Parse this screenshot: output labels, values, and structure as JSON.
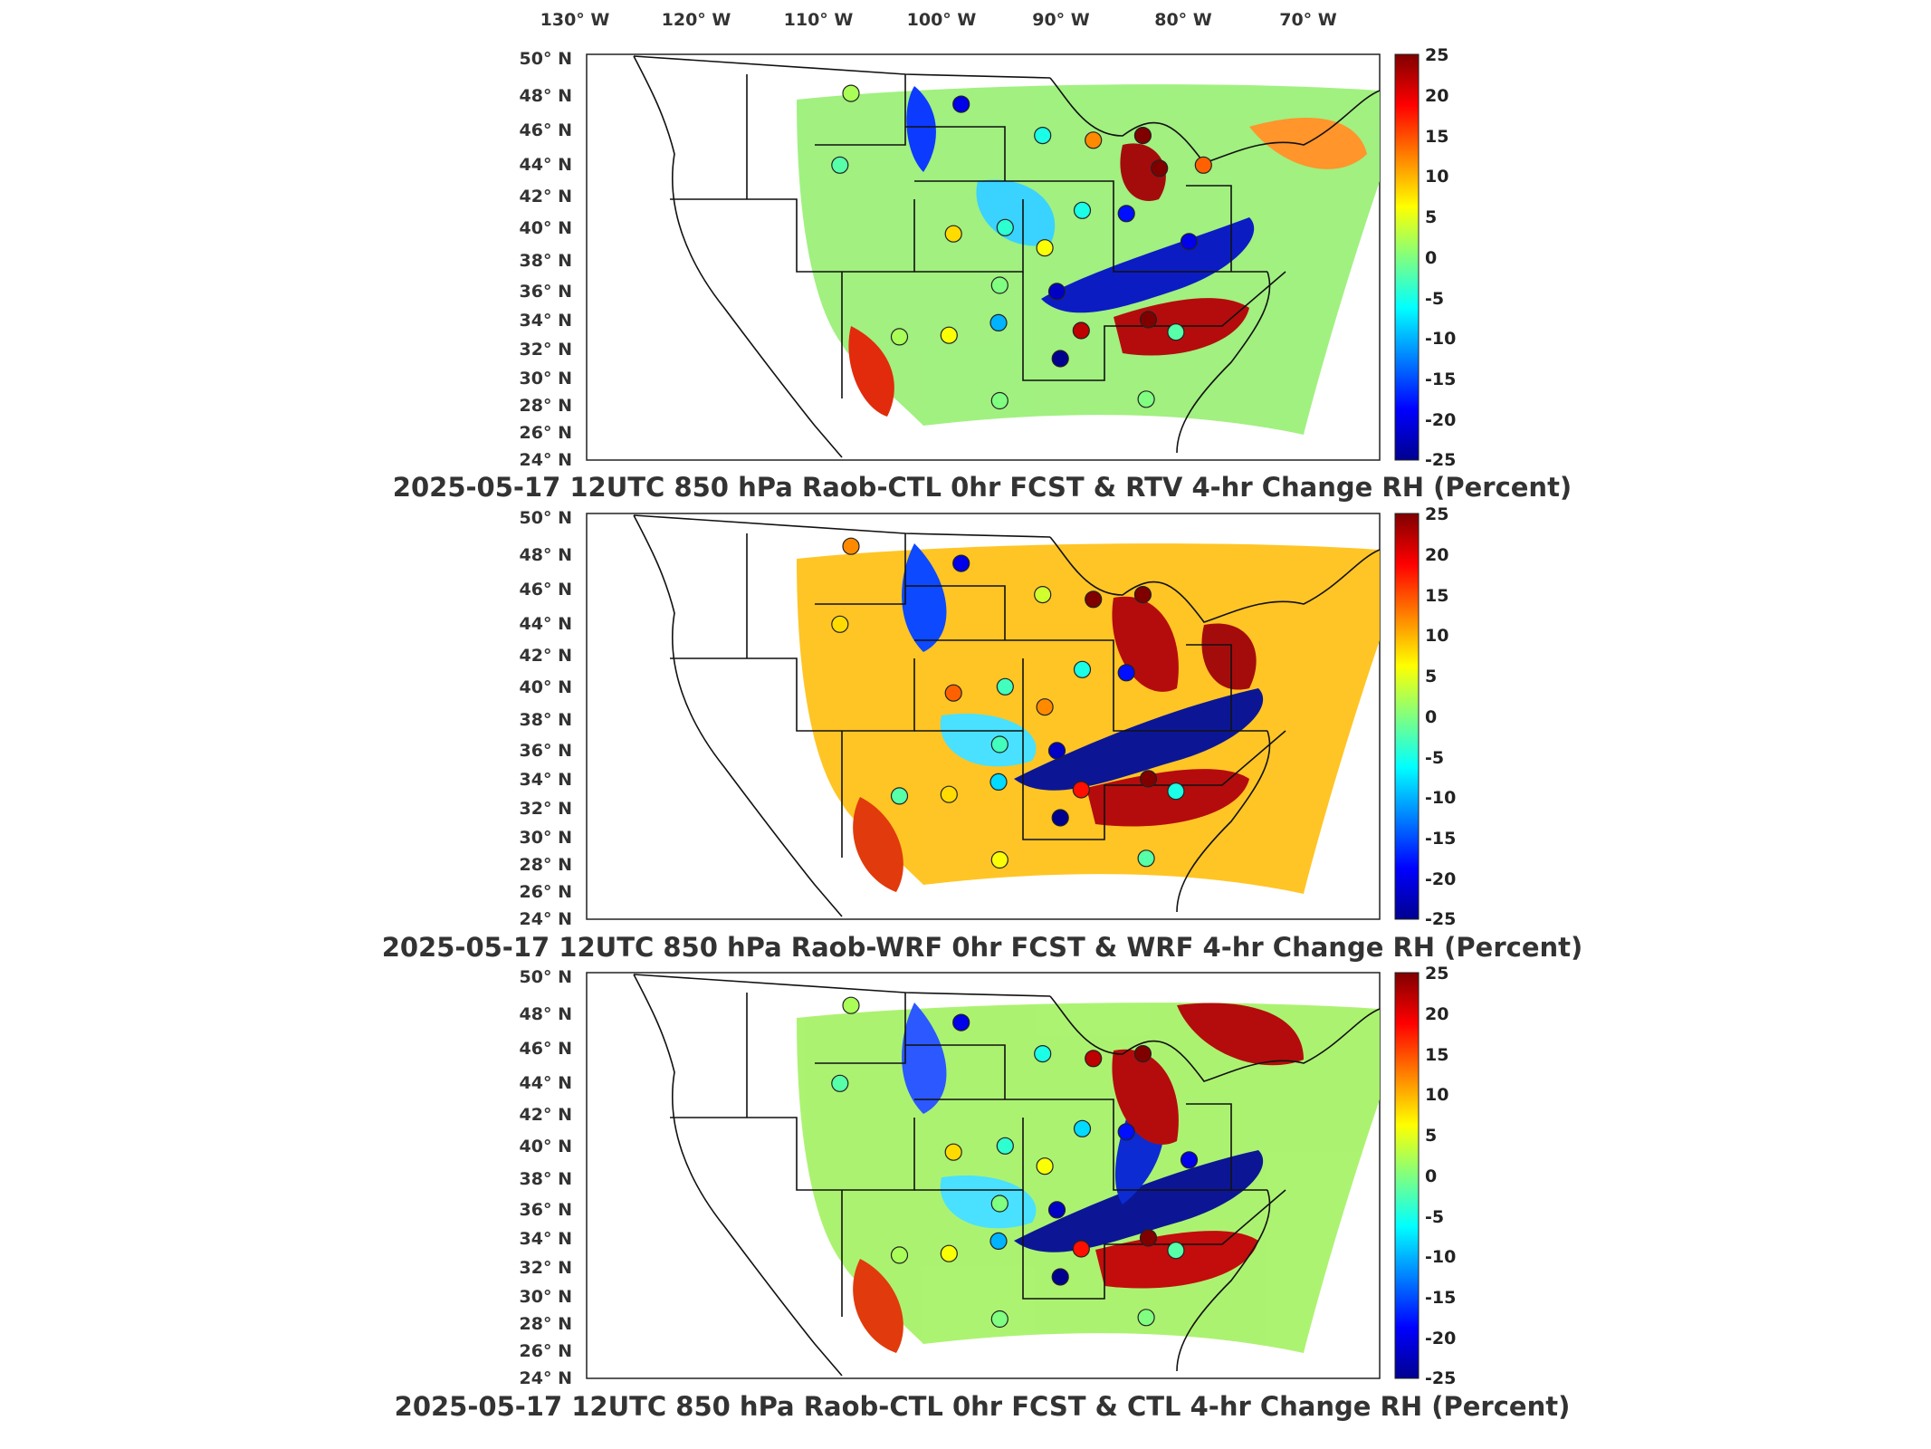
{
  "lon_labels": [
    "130° W",
    "120° W",
    "110° W",
    "100° W",
    "90° W",
    "80° W",
    "70° W"
  ],
  "lat_labels": [
    "50° N",
    "48° N",
    "46° N",
    "44° N",
    "42° N",
    "40° N",
    "38° N",
    "36° N",
    "34° N",
    "32° N",
    "30° N",
    "28° N",
    "26° N",
    "24° N"
  ],
  "colorbar": {
    "min": -25,
    "max": 25,
    "tick_labels": [
      "25",
      "20",
      "15",
      "10",
      "5",
      "0",
      "-5",
      "-10",
      "-15",
      "-20",
      "-25"
    ],
    "colormap": "jet",
    "colors": [
      "#00008f",
      "#0000ff",
      "#0080ff",
      "#00ffff",
      "#80ff80",
      "#ffff00",
      "#ff8000",
      "#ff0000",
      "#800000"
    ]
  },
  "panels": [
    {
      "title": "2025-05-17 12UTC 850 hPa Raob-CTL 0hr FCST & RTV 4-hr Change RH (Percent)",
      "raob_points": [
        {
          "lon": -111.0,
          "lat": 47.5,
          "value": 2
        },
        {
          "lon": -101.0,
          "lat": 46.8,
          "value": -20
        },
        {
          "lon": -112.0,
          "lat": 42.9,
          "value": -2
        },
        {
          "lon": -93.6,
          "lat": 44.8,
          "value": -5
        },
        {
          "lon": -89.0,
          "lat": 44.5,
          "value": 12
        },
        {
          "lon": -84.5,
          "lat": 44.8,
          "value": 25
        },
        {
          "lon": -83.0,
          "lat": 42.7,
          "value": 25
        },
        {
          "lon": -79.0,
          "lat": 42.9,
          "value": 14
        },
        {
          "lon": -97.0,
          "lat": 38.9,
          "value": -4
        },
        {
          "lon": -101.7,
          "lat": 38.5,
          "value": 8
        },
        {
          "lon": -93.4,
          "lat": 37.6,
          "value": 6
        },
        {
          "lon": -90.0,
          "lat": 40.0,
          "value": -5
        },
        {
          "lon": -86.0,
          "lat": 39.8,
          "value": -18
        },
        {
          "lon": -80.3,
          "lat": 38.0,
          "value": -20
        },
        {
          "lon": -97.5,
          "lat": 35.2,
          "value": 0
        },
        {
          "lon": -92.3,
          "lat": 34.8,
          "value": -22
        },
        {
          "lon": -97.6,
          "lat": 32.8,
          "value": -10
        },
        {
          "lon": -90.1,
          "lat": 32.3,
          "value": 22
        },
        {
          "lon": -84.0,
          "lat": 33.0,
          "value": 25
        },
        {
          "lon": -81.5,
          "lat": 32.2,
          "value": -2
        },
        {
          "lon": -106.6,
          "lat": 31.9,
          "value": 2
        },
        {
          "lon": -102.1,
          "lat": 32.0,
          "value": 6
        },
        {
          "lon": -92.0,
          "lat": 30.5,
          "value": -25
        },
        {
          "lon": -97.5,
          "lat": 27.8,
          "value": 0
        },
        {
          "lon": -84.2,
          "lat": 27.9,
          "value": 0
        }
      ]
    },
    {
      "title": "2025-05-17 12UTC 850 hPa Raob-WRF 0hr FCST & WRF 4-hr Change RH (Percent)",
      "raob_points": [
        {
          "lon": -111.0,
          "lat": 47.9,
          "value": 12
        },
        {
          "lon": -101.0,
          "lat": 46.8,
          "value": -20
        },
        {
          "lon": -112.0,
          "lat": 42.9,
          "value": 8
        },
        {
          "lon": -93.6,
          "lat": 44.8,
          "value": 4
        },
        {
          "lon": -89.0,
          "lat": 44.5,
          "value": 25
        },
        {
          "lon": -84.5,
          "lat": 44.8,
          "value": 25
        },
        {
          "lon": -97.0,
          "lat": 38.9,
          "value": -3
        },
        {
          "lon": -101.7,
          "lat": 38.5,
          "value": 14
        },
        {
          "lon": -93.4,
          "lat": 37.6,
          "value": 12
        },
        {
          "lon": -90.0,
          "lat": 40.0,
          "value": -5
        },
        {
          "lon": -86.0,
          "lat": 39.8,
          "value": -18
        },
        {
          "lon": -97.5,
          "lat": 35.2,
          "value": -3
        },
        {
          "lon": -92.3,
          "lat": 34.8,
          "value": -22
        },
        {
          "lon": -97.6,
          "lat": 32.8,
          "value": -8
        },
        {
          "lon": -90.1,
          "lat": 32.3,
          "value": 18
        },
        {
          "lon": -84.0,
          "lat": 33.0,
          "value": 25
        },
        {
          "lon": -81.5,
          "lat": 32.2,
          "value": -5
        },
        {
          "lon": -106.6,
          "lat": 31.9,
          "value": -2
        },
        {
          "lon": -102.1,
          "lat": 32.0,
          "value": 8
        },
        {
          "lon": -92.0,
          "lat": 30.5,
          "value": -25
        },
        {
          "lon": -97.5,
          "lat": 27.8,
          "value": 6
        },
        {
          "lon": -84.2,
          "lat": 27.9,
          "value": -2
        }
      ]
    },
    {
      "title": "2025-05-17 12UTC 850 hPa Raob-CTL 0hr FCST & CTL 4-hr Change RH (Percent)",
      "raob_points": [
        {
          "lon": -111.0,
          "lat": 47.9,
          "value": 2
        },
        {
          "lon": -101.0,
          "lat": 46.8,
          "value": -20
        },
        {
          "lon": -112.0,
          "lat": 42.9,
          "value": -2
        },
        {
          "lon": -93.6,
          "lat": 44.8,
          "value": -5
        },
        {
          "lon": -89.0,
          "lat": 44.5,
          "value": 22
        },
        {
          "lon": -84.5,
          "lat": 44.8,
          "value": 25
        },
        {
          "lon": -97.0,
          "lat": 38.9,
          "value": -4
        },
        {
          "lon": -101.7,
          "lat": 38.5,
          "value": 8
        },
        {
          "lon": -93.4,
          "lat": 37.6,
          "value": 6
        },
        {
          "lon": -90.0,
          "lat": 40.0,
          "value": -8
        },
        {
          "lon": -86.0,
          "lat": 39.8,
          "value": -18
        },
        {
          "lon": -80.3,
          "lat": 38.0,
          "value": -20
        },
        {
          "lon": -97.5,
          "lat": 35.2,
          "value": 0
        },
        {
          "lon": -92.3,
          "lat": 34.8,
          "value": -22
        },
        {
          "lon": -97.6,
          "lat": 32.8,
          "value": -10
        },
        {
          "lon": -90.1,
          "lat": 32.3,
          "value": 18
        },
        {
          "lon": -84.0,
          "lat": 33.0,
          "value": 25
        },
        {
          "lon": -81.5,
          "lat": 32.2,
          "value": -2
        },
        {
          "lon": -106.6,
          "lat": 31.9,
          "value": 2
        },
        {
          "lon": -102.1,
          "lat": 32.0,
          "value": 6
        },
        {
          "lon": -92.0,
          "lat": 30.5,
          "value": -25
        },
        {
          "lon": -97.5,
          "lat": 27.8,
          "value": 0
        },
        {
          "lon": -84.2,
          "lat": 27.9,
          "value": 0
        }
      ]
    }
  ]
}
